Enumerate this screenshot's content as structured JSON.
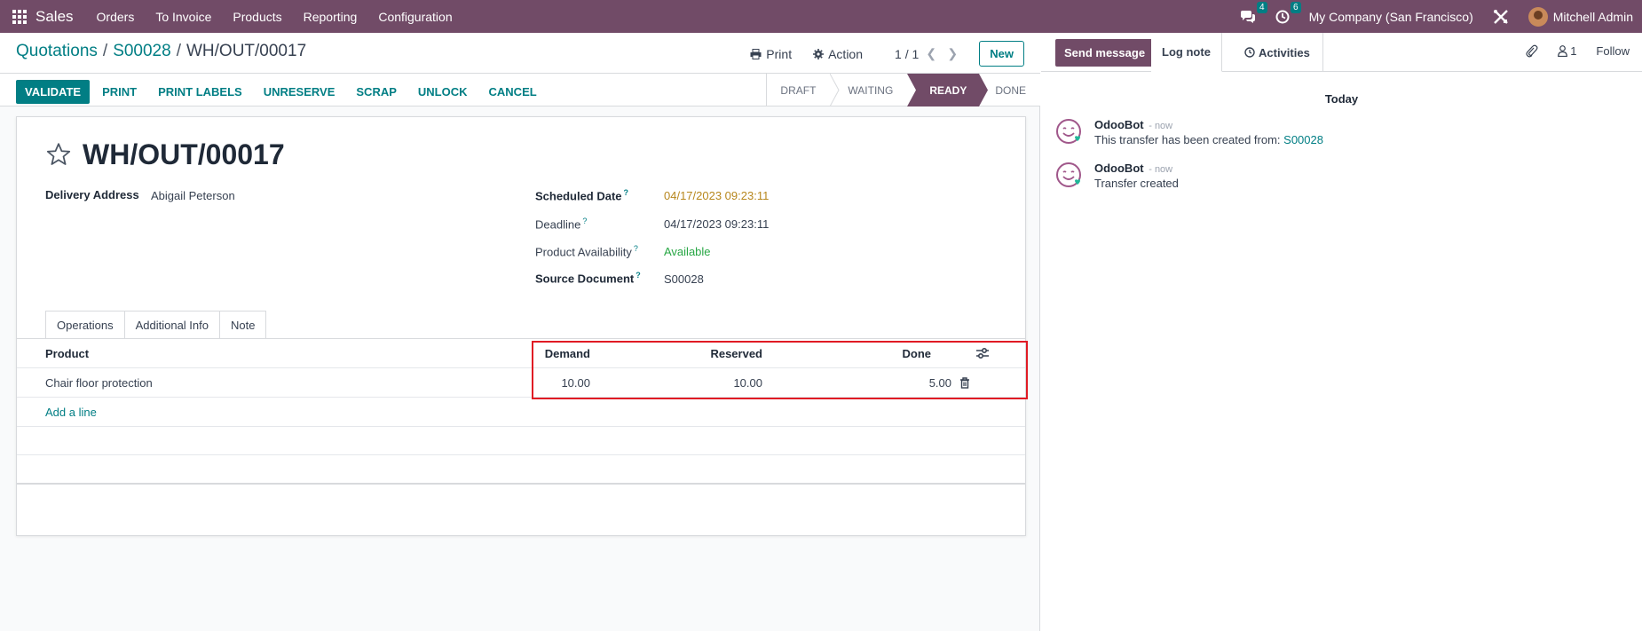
{
  "navbar": {
    "app_name": "Sales",
    "menu": [
      "Orders",
      "To Invoice",
      "Products",
      "Reporting",
      "Configuration"
    ],
    "messages_count": "4",
    "activities_count": "6",
    "company": "My Company (San Francisco)",
    "user": "Mitchell Admin"
  },
  "breadcrumb": {
    "item1": "Quotations",
    "item2": "S00028",
    "current": "WH/OUT/00017"
  },
  "control": {
    "print_label": "Print",
    "action_label": "Action",
    "pager": "1 / 1",
    "new_label": "New"
  },
  "statusbar": {
    "buttons": [
      "VALIDATE",
      "PRINT",
      "PRINT LABELS",
      "UNRESERVE",
      "SCRAP",
      "UNLOCK",
      "CANCEL"
    ],
    "stages": [
      "DRAFT",
      "WAITING",
      "READY",
      "DONE"
    ],
    "active_stage": "READY"
  },
  "record": {
    "title": "WH/OUT/00017",
    "delivery_address_label": "Delivery Address",
    "delivery_address": "Abigail Peterson",
    "scheduled_date_label": "Scheduled Date",
    "scheduled_date": "04/17/2023 09:23:11",
    "deadline_label": "Deadline",
    "deadline": "04/17/2023 09:23:11",
    "availability_label": "Product Availability",
    "availability": "Available",
    "source_label": "Source Document",
    "source": "S00028",
    "help_mark": "?"
  },
  "tabs": [
    "Operations",
    "Additional Info",
    "Note"
  ],
  "operations": {
    "columns": {
      "product": "Product",
      "demand": "Demand",
      "reserved": "Reserved",
      "done": "Done"
    },
    "rows": [
      {
        "product": "Chair floor protection",
        "demand": "10.00",
        "reserved": "10.00",
        "done": "5.00"
      }
    ],
    "add_line": "Add a line"
  },
  "chatter": {
    "send_message": "Send message",
    "log_note": "Log note",
    "activities": "Activities",
    "followers_count": "1",
    "follow": "Follow",
    "date_separator": "Today",
    "messages": [
      {
        "author": "OdooBot",
        "date": "- now",
        "body": "This transfer has been created from: ",
        "link": "S00028"
      },
      {
        "author": "OdooBot",
        "date": "- now",
        "body": "Transfer created",
        "link": ""
      }
    ]
  },
  "colors": {
    "brand": "#714b67",
    "accent": "#017e84",
    "warning": "#b7871d",
    "success": "#28a745",
    "highlight": "#e01b24"
  }
}
